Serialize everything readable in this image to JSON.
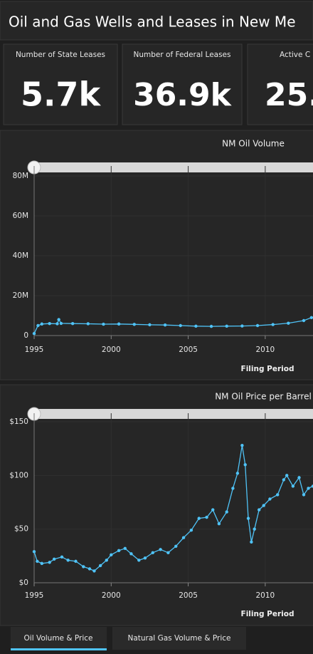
{
  "header": {
    "title": "Oil and Gas Wells and Leases in New Me"
  },
  "cards": [
    {
      "label": "Number of State Leases",
      "value": "5.7k"
    },
    {
      "label": "Number of Federal Leases",
      "value": "36.9k"
    },
    {
      "label": "Active C",
      "value": "25."
    }
  ],
  "chart_data": [
    {
      "type": "line",
      "title": "NM Oil Volume",
      "x_label": "Filing Period",
      "color": "#4fc3f7",
      "grid": true,
      "x": [
        1995,
        1995.25,
        1995.5,
        1996,
        1996.5,
        1996.6,
        1996.75,
        1997.5,
        1998.5,
        1999.5,
        2000.5,
        2001.5,
        2002.5,
        2003.5,
        2004.5,
        2005.5,
        2006.5,
        2007.5,
        2008.5,
        2009.5,
        2010.5,
        2011.5,
        2012.5,
        2013
      ],
      "values": [
        1000000,
        5000000,
        5800000,
        6000000,
        5900000,
        8000000,
        6100000,
        6000000,
        5900000,
        5700000,
        5800000,
        5600000,
        5400000,
        5300000,
        5000000,
        4700000,
        4600000,
        4700000,
        4800000,
        5000000,
        5500000,
        6200000,
        7500000,
        9000000
      ],
      "xlim": [
        1995,
        2013.1
      ],
      "xticks": [
        1995,
        2000,
        2005,
        2010
      ],
      "ylim": [
        0,
        85000000
      ],
      "yticks": [
        0,
        {
          "value": 20000000,
          "label": "20M"
        },
        {
          "value": 40000000,
          "label": "40M"
        },
        {
          "value": 60000000,
          "label": "60M"
        },
        {
          "value": 80000000,
          "label": "80M"
        }
      ]
    },
    {
      "type": "line",
      "title": "NM Oil Price per Barrel",
      "x_label": "Filing Period",
      "color": "#4fc3f7",
      "grid": true,
      "x": [
        1995,
        1995.2,
        1995.5,
        1996,
        1996.3,
        1996.8,
        1997.2,
        1997.7,
        1998.2,
        1998.6,
        1998.9,
        1999.3,
        1999.7,
        2000,
        2000.5,
        2000.9,
        2001.3,
        2001.8,
        2002.2,
        2002.7,
        2003.2,
        2003.7,
        2004.2,
        2004.7,
        2005.2,
        2005.7,
        2006.2,
        2006.6,
        2007,
        2007.5,
        2007.9,
        2008.2,
        2008.5,
        2008.7,
        2008.9,
        2009.1,
        2009.3,
        2009.6,
        2009.9,
        2010.3,
        2010.8,
        2011.2,
        2011.4,
        2011.8,
        2012.2,
        2012.5,
        2012.8,
        2013.1
      ],
      "values": [
        29,
        20,
        18,
        19,
        22,
        24,
        21,
        20,
        15,
        13,
        11,
        16,
        21,
        26,
        30,
        32,
        27,
        21,
        23,
        28,
        31,
        28,
        34,
        42,
        49,
        60,
        61,
        68,
        55,
        66,
        88,
        102,
        128,
        110,
        60,
        38,
        50,
        68,
        72,
        78,
        82,
        96,
        100,
        90,
        98,
        82,
        88,
        90
      ],
      "xlim": [
        1995,
        2013.1
      ],
      "xticks": [
        1995,
        2000,
        2005,
        2010
      ],
      "ylim": [
        0,
        158
      ],
      "yticks": [
        {
          "value": 0,
          "label": "$0"
        },
        {
          "value": 50,
          "label": "$50"
        },
        {
          "value": 100,
          "label": "$100"
        },
        {
          "value": 150,
          "label": "$150"
        }
      ]
    }
  ],
  "tabs": [
    {
      "label": "Oil Volume & Price"
    },
    {
      "label": "Natural Gas Volume & Price"
    }
  ]
}
